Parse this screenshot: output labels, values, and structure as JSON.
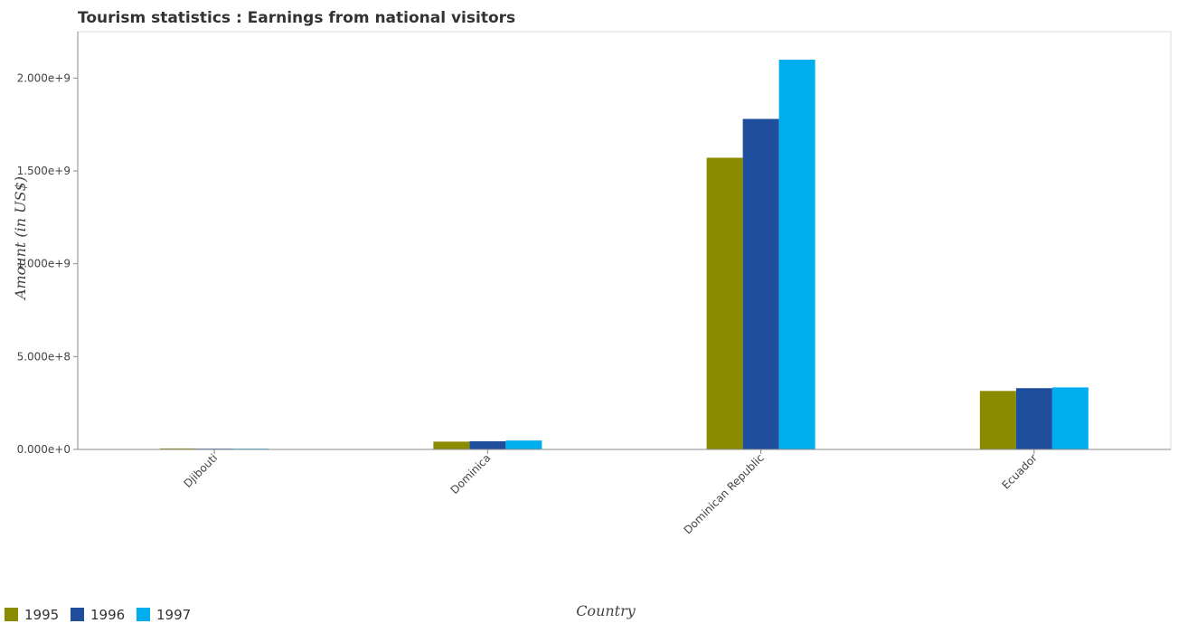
{
  "chart_data": {
    "type": "bar",
    "title": "Tourism statistics : Earnings from national visitors",
    "xlabel": "Country",
    "ylabel": "Amount (in US$)",
    "categories": [
      "Djibouti",
      "Dominica",
      "Dominican Republic",
      "Ecuador"
    ],
    "series": [
      {
        "name": "1995",
        "color": "#8b8b00",
        "values": [
          5400000,
          42000000,
          1571000000,
          315000000
        ]
      },
      {
        "name": "1996",
        "color": "#1f4e9c",
        "values": [
          4200000,
          44000000,
          1780000000,
          330000000
        ]
      },
      {
        "name": "1997",
        "color": "#00aeef",
        "values": [
          4000000,
          48000000,
          2099000000,
          334000000
        ]
      }
    ],
    "ylim": [
      0,
      2250000000
    ],
    "yticks": [
      {
        "value": 0,
        "label": "0.000e+0"
      },
      {
        "value": 500000000,
        "label": "5.000e+8"
      },
      {
        "value": 1000000000,
        "label": "1.000e+9"
      },
      {
        "value": 1500000000,
        "label": "1.500e+9"
      },
      {
        "value": 2000000000,
        "label": "2.000e+9"
      }
    ],
    "grid": false,
    "legend_position": "bottom-left"
  }
}
